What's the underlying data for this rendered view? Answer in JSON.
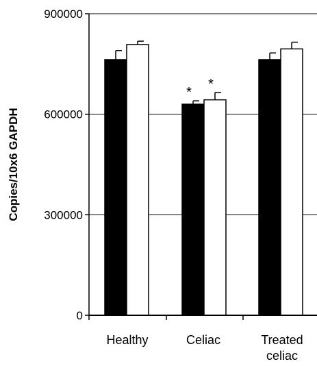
{
  "chart_data": {
    "type": "bar",
    "title": "",
    "xlabel": "",
    "ylabel": "Copies/10x6 GAPDH",
    "ylim": [
      0,
      900000
    ],
    "yticks": [
      0,
      300000,
      600000,
      900000
    ],
    "ytick_labels": [
      "0",
      "300000",
      "600000",
      "900000"
    ],
    "grid": "horizontal",
    "legend": "none",
    "categories": [
      {
        "lines": [
          "Healthy"
        ]
      },
      {
        "lines": [
          "Celiac"
        ]
      },
      {
        "lines": [
          "Treated",
          "celiac"
        ]
      }
    ],
    "series": [
      {
        "fill": "#000000",
        "values": [
          763000,
          630000,
          763000
        ],
        "errors": [
          27000,
          10000,
          20000
        ]
      },
      {
        "fill": "#ffffff",
        "values": [
          808000,
          643000,
          795000
        ],
        "errors": [
          10000,
          22000,
          20000
        ]
      }
    ],
    "annotations": [
      {
        "text": "*",
        "category": 1,
        "series": 0
      },
      {
        "text": "*",
        "category": 1,
        "series": 1
      }
    ]
  }
}
